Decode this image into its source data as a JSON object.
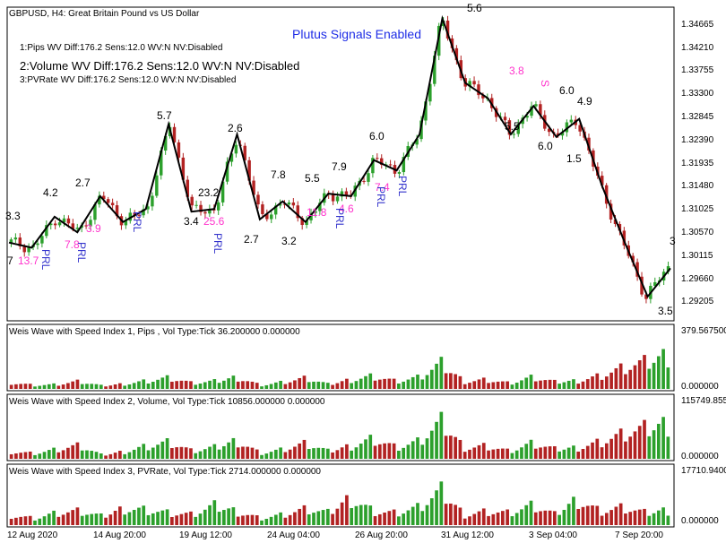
{
  "window": {
    "title": "GBPUSD, H4:  Great Britain Pound vs US Dollar",
    "banner": "Plutus Signals Enabled",
    "banner_color": "#1f2ee6"
  },
  "info_lines": [
    "1:Pips     WV Diff:176.2 Sens:12.0 WV:N NV:Disabled",
    "2:Volume WV Diff:176.2 Sens:12.0 WV:N NV:Disabled",
    "3:PVRate WV Diff:176.2 Sens:12.0 WV:N NV:Disabled"
  ],
  "price_axis": [
    "1.34665",
    "1.34210",
    "1.33755",
    "1.33300",
    "1.32845",
    "1.32390",
    "1.31935",
    "1.31480",
    "1.31025",
    "1.30570",
    "1.30115",
    "1.29660",
    "1.29205"
  ],
  "time_axis": [
    "12 Aug 2020",
    "14 Aug 20:00",
    "19 Aug 12:00",
    "24 Aug 04:00",
    "26 Aug 20:00",
    "31 Aug 12:00",
    "3 Sep 04:00",
    "7 Sep 20:00"
  ],
  "wave_labels": [
    "3.3",
    "4.2",
    "2.7",
    "5.7",
    "3.4",
    "23.2",
    "2.6",
    "2.7",
    "7.8",
    "3.2",
    "5.5",
    "7.9",
    "6.0",
    "5.6",
    "5.5",
    "6.0",
    "4.9",
    "6.0",
    "1.5",
    "3",
    "3.5",
    "7"
  ],
  "signal_labels": [
    "13.7",
    "7.8",
    "3.9",
    "25.6",
    "11.8",
    "4.6",
    "7.4",
    "3.8",
    "S"
  ],
  "prl_labels": [
    "PRL",
    "PRL",
    "PRL",
    "PRL",
    "PRL",
    "PRL",
    "PRL"
  ],
  "indicators": [
    {
      "title": "Weis Wave with Speed Index 1, Pips     , Vol Type:Tick 36.200000 0.000000",
      "scale_max": "379.567500",
      "scale_min": "0.000000"
    },
    {
      "title": "Weis Wave with Speed Index 2, Volume, Vol Type:Tick 10856.000000 0.000000",
      "scale_max": "115749.855",
      "scale_min": "0.000000"
    },
    {
      "title": "Weis Wave with Speed Index 3, PVRate, Vol Type:Tick 2714.000000 0.000000",
      "scale_max": "17710.9400",
      "scale_min": "0.000000"
    }
  ],
  "colors": {
    "bull": "#2ca02c",
    "bear": "#b22222",
    "zigzag": "#000000",
    "signal": "#ff33cc",
    "prl": "#3333cc"
  },
  "chart_data": {
    "type": "candlestick",
    "symbol": "GBPUSD",
    "timeframe": "H4",
    "price_range": [
      1.2895,
      1.349
    ],
    "zigzag_prices": [
      1.304,
      1.303,
      1.309,
      1.306,
      1.313,
      1.308,
      1.3105,
      1.327,
      1.31,
      1.3105,
      1.325,
      1.3085,
      1.312,
      1.308,
      1.3135,
      1.313,
      1.32,
      1.318,
      1.325,
      1.3475,
      1.335,
      1.332,
      1.325,
      1.3305,
      1.3245,
      1.328,
      1.315,
      1.304,
      1.2935,
      1.299
    ],
    "weis_wave_pips": [
      0.18,
      0.1,
      0.12,
      0.2,
      0.08,
      0.14,
      0.22,
      0.3,
      0.15,
      0.2,
      0.32,
      0.1,
      0.18,
      0.28,
      0.12,
      0.25,
      0.35,
      0.2,
      0.3,
      0.65,
      0.2,
      0.25,
      0.15,
      0.3,
      0.18,
      0.22,
      0.35,
      0.55,
      0.7,
      0.95
    ],
    "weis_wave_volume": [
      0.2,
      0.15,
      0.25,
      0.35,
      0.1,
      0.2,
      0.35,
      0.45,
      0.2,
      0.3,
      0.5,
      0.15,
      0.25,
      0.4,
      0.2,
      0.35,
      0.55,
      0.3,
      0.45,
      0.95,
      0.3,
      0.35,
      0.2,
      0.4,
      0.25,
      0.3,
      0.45,
      0.65,
      0.8,
      0.98
    ],
    "weis_wave_pvrate": [
      0.3,
      0.2,
      0.35,
      0.4,
      0.25,
      0.5,
      0.45,
      0.35,
      0.3,
      0.55,
      0.4,
      0.2,
      0.3,
      0.45,
      0.35,
      0.8,
      0.4,
      0.35,
      0.5,
      0.95,
      0.3,
      0.4,
      0.35,
      0.55,
      0.3,
      0.75,
      0.4,
      0.5,
      0.35,
      0.45
    ]
  }
}
